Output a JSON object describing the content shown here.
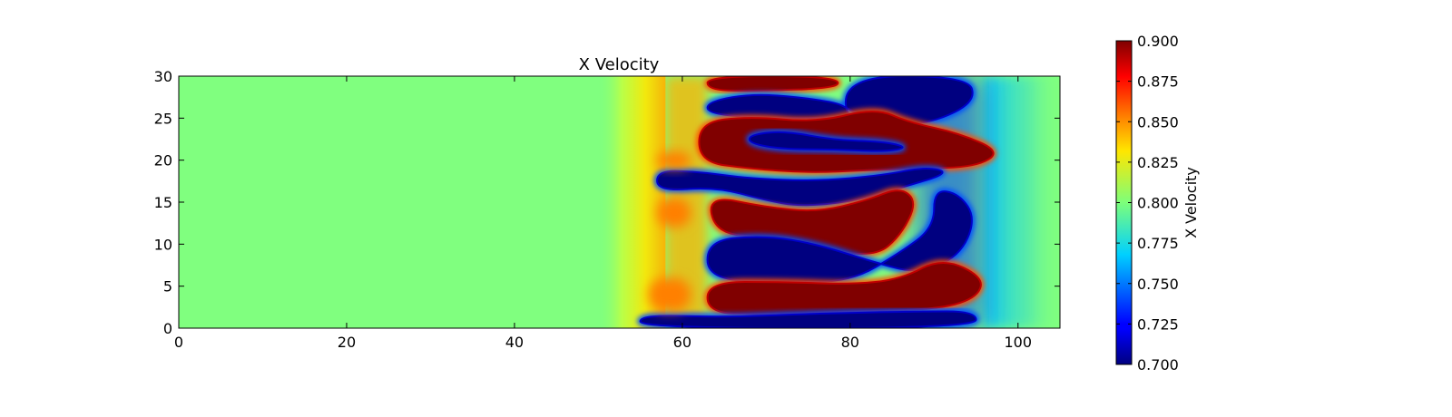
{
  "chart_data": {
    "type": "heatmap",
    "title": "X Velocity",
    "xlabel": "",
    "ylabel": "",
    "xlim": [
      0,
      105
    ],
    "ylim": [
      0,
      30
    ],
    "x_ticks": [
      0,
      20,
      40,
      60,
      80,
      100
    ],
    "y_ticks": [
      0,
      5,
      10,
      15,
      20,
      25,
      30
    ],
    "colormap": "jet",
    "colorbar": {
      "label": "X Velocity",
      "range": [
        0.7,
        0.9
      ],
      "ticks": [
        "0.700",
        "0.725",
        "0.750",
        "0.775",
        "0.800",
        "0.825",
        "0.850",
        "0.875",
        "0.900"
      ]
    },
    "background_value": 0.8,
    "upstream_transition": [
      50,
      58
    ],
    "structures": [
      {
        "kind": "high",
        "value": 0.9,
        "path": [
          [
            63,
            30
          ],
          [
            78,
            30
          ],
          [
            79,
            28.6
          ],
          [
            68,
            28.2
          ],
          [
            63,
            28.4
          ]
        ]
      },
      {
        "kind": "low",
        "value": 0.7,
        "path": [
          [
            79,
            30
          ],
          [
            94,
            30
          ],
          [
            95,
            27
          ],
          [
            90,
            24.5
          ],
          [
            84,
            24
          ],
          [
            80,
            26
          ],
          [
            78,
            27
          ],
          [
            69,
            28
          ],
          [
            63,
            27
          ],
          [
            63,
            25.5
          ],
          [
            70,
            25
          ],
          [
            77,
            25
          ],
          [
            82,
            25.6
          ],
          [
            86,
            25.2
          ],
          [
            88,
            23.5
          ],
          [
            90,
            22.5
          ],
          [
            80,
            23
          ]
        ]
      },
      {
        "kind": "high",
        "value": 0.9,
        "path": [
          [
            62,
            24.5
          ],
          [
            68,
            25.2
          ],
          [
            76,
            24.5
          ],
          [
            83,
            26.2
          ],
          [
            87,
            24.5
          ],
          [
            93,
            23.2
          ],
          [
            98,
            21
          ],
          [
            95,
            19.2
          ],
          [
            88,
            19
          ],
          [
            82,
            18.8
          ],
          [
            75,
            18.5
          ],
          [
            68,
            19
          ],
          [
            62,
            19.8
          ]
        ]
      },
      {
        "kind": "low",
        "value": 0.7,
        "path": [
          [
            68,
            23
          ],
          [
            72,
            23.5
          ],
          [
            78,
            22.4
          ],
          [
            84,
            22.2
          ],
          [
            87,
            21.5
          ],
          [
            84,
            21
          ],
          [
            78,
            21.3
          ],
          [
            72,
            21.3
          ],
          [
            68,
            22
          ]
        ]
      },
      {
        "kind": "low",
        "value": 0.7,
        "path": [
          [
            57,
            18.8
          ],
          [
            62,
            18.6
          ],
          [
            68,
            17.8
          ],
          [
            76,
            17.5
          ],
          [
            84,
            18.2
          ],
          [
            89,
            19.2
          ],
          [
            92,
            18.5
          ],
          [
            86,
            16.7
          ],
          [
            80,
            15
          ],
          [
            74,
            14.5
          ],
          [
            70,
            15.2
          ],
          [
            64,
            16.8
          ],
          [
            57,
            16.3
          ]
        ]
      },
      {
        "kind": "high",
        "value": 0.9,
        "path": [
          [
            63,
            15.8
          ],
          [
            70,
            14.4
          ],
          [
            76,
            13.8
          ],
          [
            82,
            15.2
          ],
          [
            86,
            16.8
          ],
          [
            88,
            15
          ],
          [
            86,
            11
          ],
          [
            83,
            8.5
          ],
          [
            76,
            9.5
          ],
          [
            70,
            10.8
          ],
          [
            64,
            11.3
          ]
        ]
      },
      {
        "kind": "low",
        "value": 0.7,
        "path": [
          [
            63,
            10.5
          ],
          [
            70,
            11
          ],
          [
            76,
            10
          ],
          [
            83,
            7.8
          ],
          [
            88,
            6.5
          ],
          [
            93,
            8.5
          ],
          [
            95,
            13
          ],
          [
            93,
            16
          ],
          [
            90,
            16.5
          ],
          [
            90,
            12
          ],
          [
            86,
            9
          ],
          [
            80,
            5.5
          ],
          [
            72,
            5.5
          ],
          [
            63,
            5.8
          ]
        ]
      },
      {
        "kind": "high",
        "value": 0.9,
        "path": [
          [
            63,
            5.5
          ],
          [
            72,
            5.5
          ],
          [
            80,
            5.2
          ],
          [
            86,
            5.8
          ],
          [
            91,
            8.4
          ],
          [
            96,
            6
          ],
          [
            95,
            3.5
          ],
          [
            90,
            2.2
          ],
          [
            80,
            2
          ],
          [
            70,
            1.6
          ],
          [
            63,
            1.8
          ]
        ]
      },
      {
        "kind": "low",
        "value": 0.7,
        "path": [
          [
            55,
            1.6
          ],
          [
            65,
            1.3
          ],
          [
            75,
            1.7
          ],
          [
            88,
            2
          ],
          [
            95,
            2
          ],
          [
            95,
            0
          ],
          [
            55,
            0
          ]
        ]
      },
      {
        "kind": "high_edge",
        "value": 0.85,
        "path": [
          [
            57,
            21
          ],
          [
            61,
            21
          ],
          [
            61,
            19
          ],
          [
            57,
            19
          ]
        ]
      },
      {
        "kind": "high_edge",
        "value": 0.85,
        "path": [
          [
            57,
            15.5
          ],
          [
            61,
            15.5
          ],
          [
            61,
            12
          ],
          [
            57,
            12
          ]
        ]
      },
      {
        "kind": "high_edge",
        "value": 0.85,
        "path": [
          [
            56,
            6
          ],
          [
            61,
            6
          ],
          [
            61,
            2
          ],
          [
            56,
            2
          ]
        ]
      }
    ]
  }
}
